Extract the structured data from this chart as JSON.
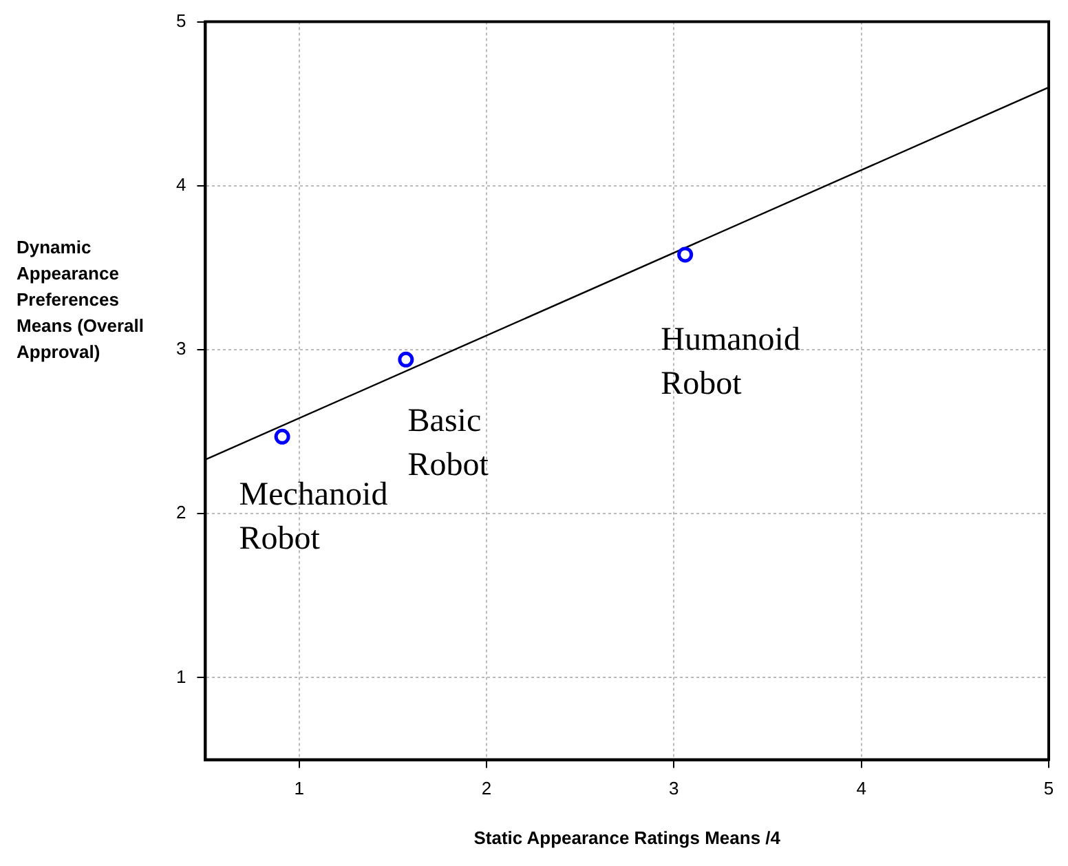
{
  "chart_data": {
    "type": "scatter",
    "xlabel": "Static Appearance Ratings Means /4",
    "ylabel": "Dynamic Appearance Preferences Means (Overall Approval)",
    "series": [
      {
        "color": "#0000ff",
        "x": [
          0.91,
          1.57,
          3.06
        ],
        "values": [
          2.47,
          2.94,
          3.58
        ],
        "marker": "circle"
      },
      {
        "type": "line",
        "color": "#000000",
        "x": [
          0.5,
          5
        ],
        "values": [
          2.33,
          4.6
        ],
        "marker": "none"
      }
    ],
    "xlim": [
      0.5,
      5
    ],
    "xticks": [
      1,
      2,
      3,
      4,
      5
    ],
    "ylim": [
      0.5,
      5
    ],
    "yticks": [
      1,
      2,
      3,
      4,
      5
    ],
    "grid": true,
    "legend": false,
    "annotations": [
      "Mechanoid Robot",
      "Basic Robot",
      "Humanoid Robot"
    ]
  }
}
